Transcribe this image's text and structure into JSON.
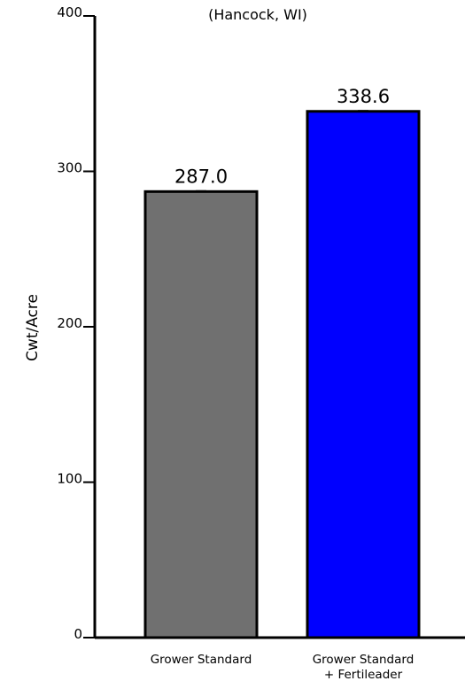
{
  "chart_data": {
    "type": "bar",
    "subtitle": "(Hancock, WI)",
    "ylabel": "Cwt/Acre",
    "ylim": [
      0,
      400
    ],
    "yticks": [
      0,
      100,
      200,
      300,
      400
    ],
    "ytick_labels": [
      "0",
      "100",
      "200",
      "300",
      "400"
    ],
    "categories": [
      [
        "Grower Standard"
      ],
      [
        "Grower Standard",
        "+ Fertileader"
      ]
    ],
    "values": [
      287.0,
      338.6
    ],
    "value_labels": [
      "287.0",
      "338.6"
    ],
    "colors": [
      "#707070",
      "#0000ff"
    ],
    "grid": false,
    "legend": false
  }
}
